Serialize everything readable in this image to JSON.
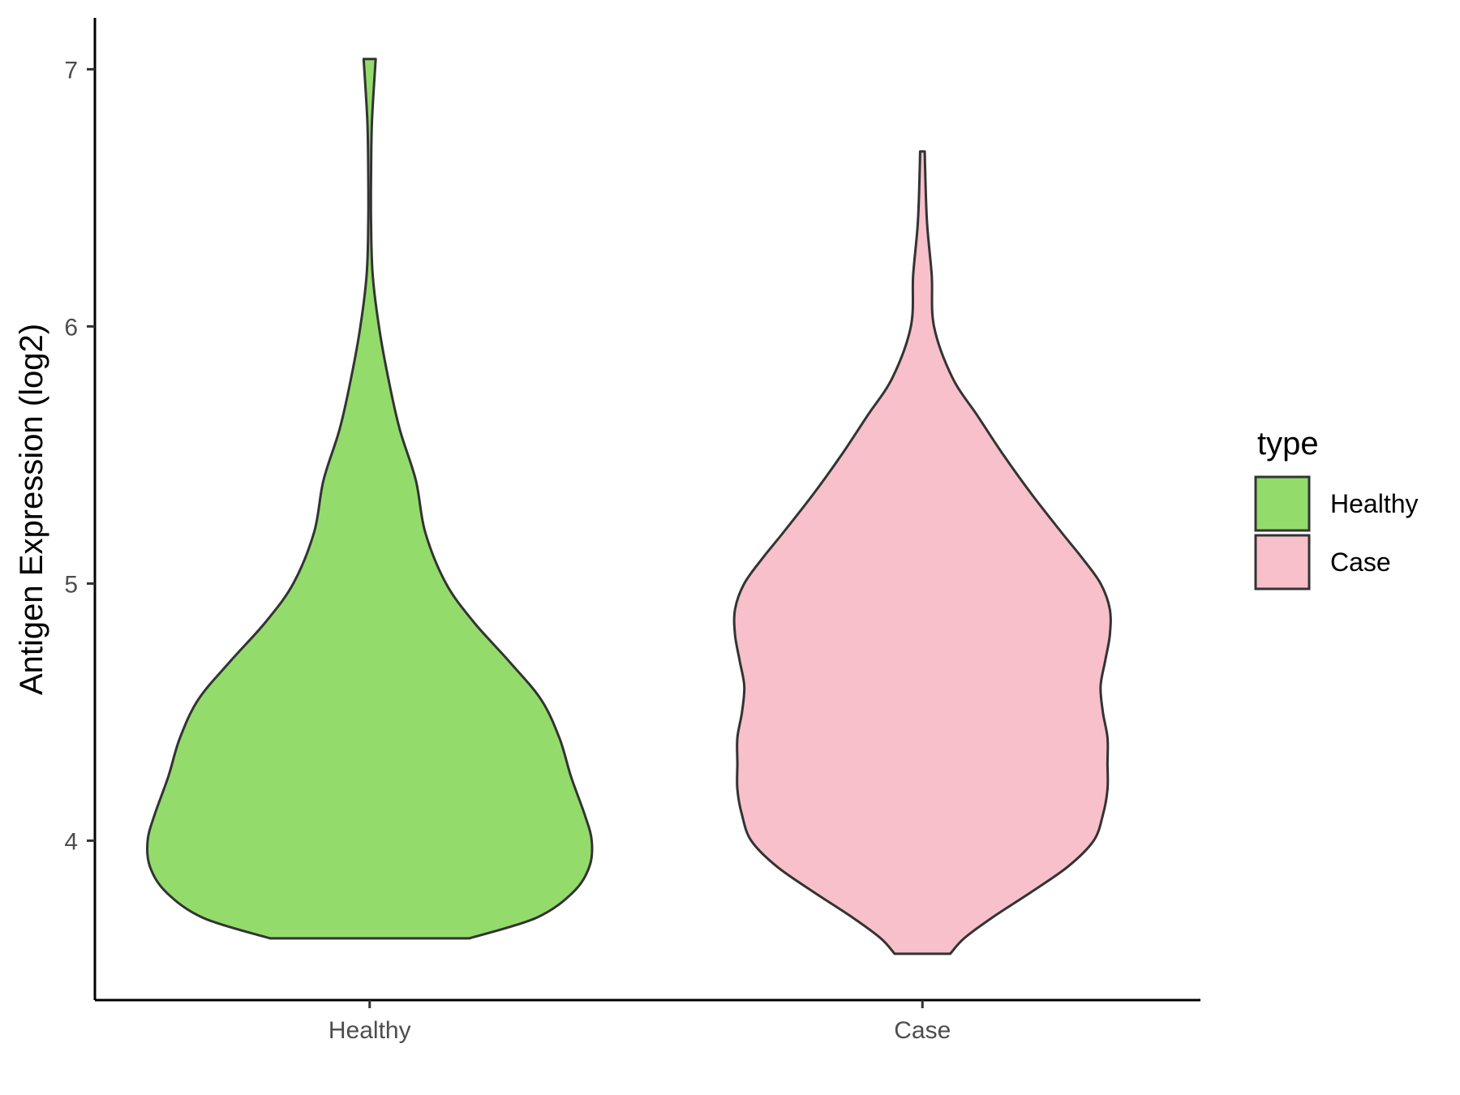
{
  "chart_data": {
    "type": "violin",
    "ylabel": "Antigen Expression (log2)",
    "xlabel": "",
    "ylim": [
      3.38,
      7.2
    ],
    "yticks": [
      4,
      5,
      6,
      7
    ],
    "categories": [
      "Healthy",
      "Case"
    ],
    "legend": {
      "title": "type",
      "position": "right",
      "entries": [
        {
          "label": "Healthy",
          "color": "#93dc6b"
        },
        {
          "label": "Case",
          "color": "#f7c0cb"
        }
      ]
    },
    "grid": false,
    "series": [
      {
        "category": "Healthy",
        "color": "#93dc6b",
        "min": 3.62,
        "max": 7.04,
        "profile": [
          [
            3.62,
            0.43
          ],
          [
            3.7,
            0.72
          ],
          [
            3.8,
            0.88
          ],
          [
            3.9,
            0.95
          ],
          [
            4.0,
            0.96
          ],
          [
            4.1,
            0.93
          ],
          [
            4.25,
            0.87
          ],
          [
            4.4,
            0.82
          ],
          [
            4.55,
            0.74
          ],
          [
            4.7,
            0.6
          ],
          [
            4.85,
            0.45
          ],
          [
            5.0,
            0.33
          ],
          [
            5.2,
            0.24
          ],
          [
            5.4,
            0.2
          ],
          [
            5.6,
            0.13
          ],
          [
            5.8,
            0.08
          ],
          [
            6.0,
            0.04
          ],
          [
            6.2,
            0.013
          ],
          [
            6.4,
            0.006
          ],
          [
            6.6,
            0.006
          ],
          [
            6.8,
            0.01
          ],
          [
            7.04,
            0.026
          ]
        ]
      },
      {
        "category": "Case",
        "color": "#f7c0cb",
        "min": 3.56,
        "max": 6.68,
        "profile": [
          [
            3.56,
            0.12
          ],
          [
            3.62,
            0.18
          ],
          [
            3.7,
            0.3
          ],
          [
            3.8,
            0.47
          ],
          [
            3.9,
            0.63
          ],
          [
            4.0,
            0.74
          ],
          [
            4.1,
            0.78
          ],
          [
            4.2,
            0.8
          ],
          [
            4.3,
            0.8
          ],
          [
            4.4,
            0.8
          ],
          [
            4.5,
            0.78
          ],
          [
            4.6,
            0.77
          ],
          [
            4.7,
            0.79
          ],
          [
            4.8,
            0.81
          ],
          [
            4.9,
            0.81
          ],
          [
            5.0,
            0.77
          ],
          [
            5.1,
            0.69
          ],
          [
            5.2,
            0.6
          ],
          [
            5.35,
            0.47
          ],
          [
            5.5,
            0.35
          ],
          [
            5.65,
            0.24
          ],
          [
            5.8,
            0.13
          ],
          [
            6.0,
            0.05
          ],
          [
            6.2,
            0.04
          ],
          [
            6.4,
            0.02
          ],
          [
            6.6,
            0.012
          ],
          [
            6.68,
            0.01
          ]
        ]
      }
    ]
  }
}
